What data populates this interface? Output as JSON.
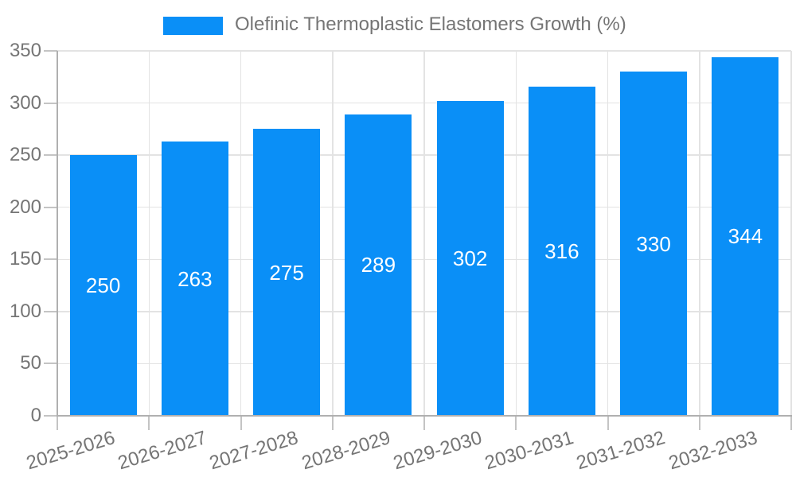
{
  "legend": {
    "label": "Olefinic Thermoplastic Elastomers Growth (%)"
  },
  "chart_data": {
    "type": "bar",
    "title": "",
    "series_name": "Olefinic Thermoplastic Elastomers Growth (%)",
    "categories": [
      "2025-2026",
      "2026-2027",
      "2027-2028",
      "2028-2029",
      "2029-2030",
      "2030-2031",
      "2031-2032",
      "2032-2033"
    ],
    "values": [
      250,
      263,
      275,
      289,
      302,
      316,
      330,
      344
    ],
    "data_labels_shown": true,
    "xlabel": "",
    "ylabel": "",
    "ylim": [
      0,
      350
    ],
    "yticks": [
      0,
      50,
      100,
      150,
      200,
      250,
      300,
      350
    ],
    "grid": true,
    "legend_position": "top-center",
    "x_label_rotation_deg": -17,
    "bar_color": "#0A8FF7",
    "data_label_color": "#ffffff",
    "axis_text_color": "#757575",
    "grid_color": "#e3e3e3",
    "tick_color": "#c4c4c4",
    "axis_line_color": "#b0b0b0",
    "background_color": "#ffffff"
  }
}
